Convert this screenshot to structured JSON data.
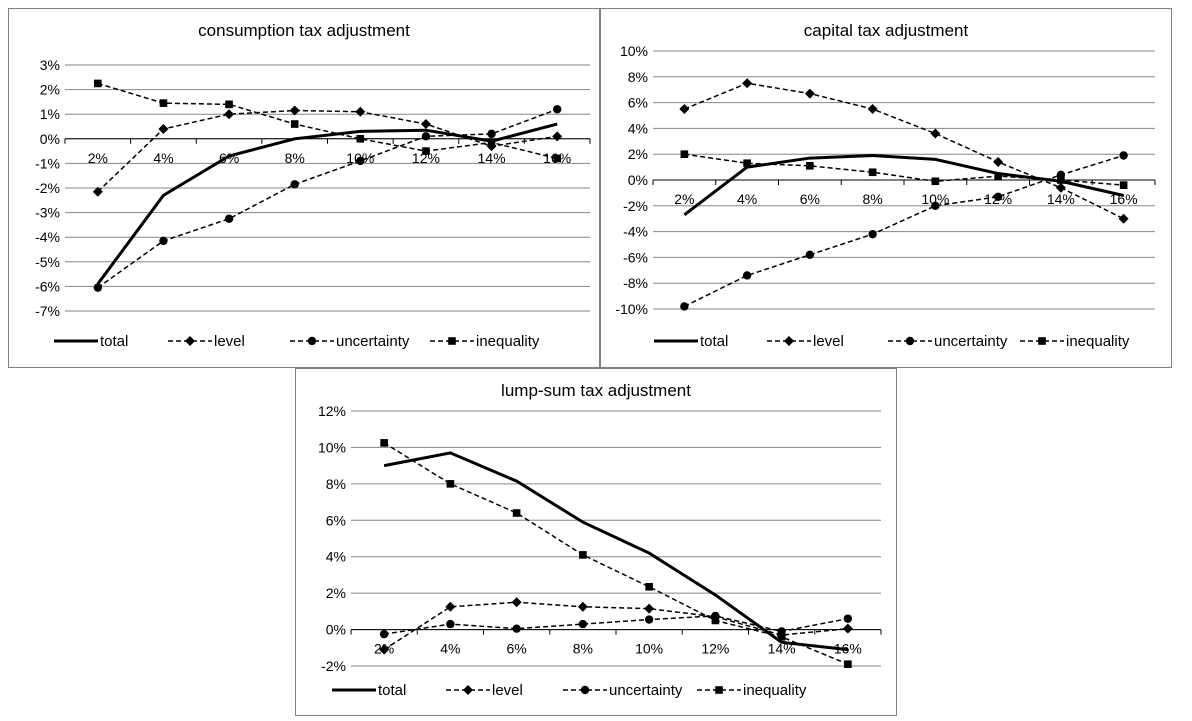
{
  "chart_data": [
    {
      "type": "line",
      "title": "consumption tax adjustment",
      "categories": [
        "2%",
        "4%",
        "6%",
        "8%",
        "10%",
        "12%",
        "14%",
        "16%"
      ],
      "yticks": [
        "3%",
        "2%",
        "1%",
        "0%",
        "-1%",
        "-2%",
        "-3%",
        "-4%",
        "-5%",
        "-6%",
        "-7%"
      ],
      "ylim": [
        -7,
        3
      ],
      "unit": "%",
      "series": [
        {
          "name": "total",
          "values": [
            -5.9,
            -2.3,
            -0.7,
            0.0,
            0.3,
            0.35,
            -0.1,
            0.6
          ]
        },
        {
          "name": "level",
          "values": [
            -2.15,
            0.4,
            1.0,
            1.15,
            1.1,
            0.6,
            -0.3,
            0.1
          ]
        },
        {
          "name": "uncertainty",
          "values": [
            -6.05,
            -4.15,
            -3.25,
            -1.85,
            -0.9,
            0.1,
            0.2,
            1.2
          ]
        },
        {
          "name": "inequality",
          "values": [
            2.25,
            1.45,
            1.4,
            0.6,
            0.0,
            -0.5,
            -0.15,
            -0.8
          ]
        }
      ]
    },
    {
      "type": "line",
      "title": "capital tax adjustment",
      "categories": [
        "2%",
        "4%",
        "6%",
        "8%",
        "10%",
        "12%",
        "14%",
        "16%"
      ],
      "yticks": [
        "10%",
        "8%",
        "6%",
        "4%",
        "2%",
        "0%",
        "-2%",
        "-4%",
        "-6%",
        "-8%",
        "-10%"
      ],
      "ylim": [
        -10,
        10
      ],
      "unit": "%",
      "series": [
        {
          "name": "total",
          "values": [
            -2.7,
            1.0,
            1.7,
            1.9,
            1.6,
            0.5,
            -0.1,
            -1.2
          ]
        },
        {
          "name": "level",
          "values": [
            5.5,
            7.5,
            6.7,
            5.5,
            3.6,
            1.4,
            -0.6,
            -3.0
          ]
        },
        {
          "name": "uncertainty",
          "values": [
            -9.8,
            -7.4,
            -5.8,
            -4.2,
            -2.0,
            -1.3,
            0.4,
            1.9
          ]
        },
        {
          "name": "inequality",
          "values": [
            2.0,
            1.3,
            1.1,
            0.6,
            -0.1,
            0.3,
            0.0,
            -0.4
          ]
        }
      ]
    },
    {
      "type": "line",
      "title": "lump-sum tax adjustment",
      "categories": [
        "2%",
        "4%",
        "6%",
        "8%",
        "10%",
        "12%",
        "14%",
        "16%"
      ],
      "yticks": [
        "12%",
        "10%",
        "8%",
        "6%",
        "4%",
        "2%",
        "0%",
        "-2%"
      ],
      "ylim": [
        -2,
        12
      ],
      "unit": "%",
      "series": [
        {
          "name": "total",
          "values": [
            9.0,
            9.7,
            8.15,
            5.9,
            4.2,
            1.9,
            -0.7,
            -1.1
          ]
        },
        {
          "name": "level",
          "values": [
            -1.1,
            1.25,
            1.5,
            1.25,
            1.15,
            0.7,
            -0.3,
            0.05
          ]
        },
        {
          "name": "uncertainty",
          "values": [
            -0.25,
            0.3,
            0.05,
            0.3,
            0.55,
            0.75,
            -0.1,
            0.6
          ]
        },
        {
          "name": "inequality",
          "values": [
            10.25,
            8.0,
            6.4,
            4.1,
            2.35,
            0.5,
            -0.4,
            -1.9
          ]
        }
      ]
    }
  ],
  "series_style": {
    "total": {
      "dash": "solid",
      "marker": "none"
    },
    "level": {
      "dash": "dashed",
      "marker": "diamond-icon"
    },
    "uncertainty": {
      "dash": "dashed",
      "marker": "circle-icon"
    },
    "inequality": {
      "dash": "dashed",
      "marker": "square-icon"
    }
  },
  "colors": {
    "line": "#000000",
    "grid": "#868686",
    "frame": "#808080",
    "text": "#000000"
  }
}
